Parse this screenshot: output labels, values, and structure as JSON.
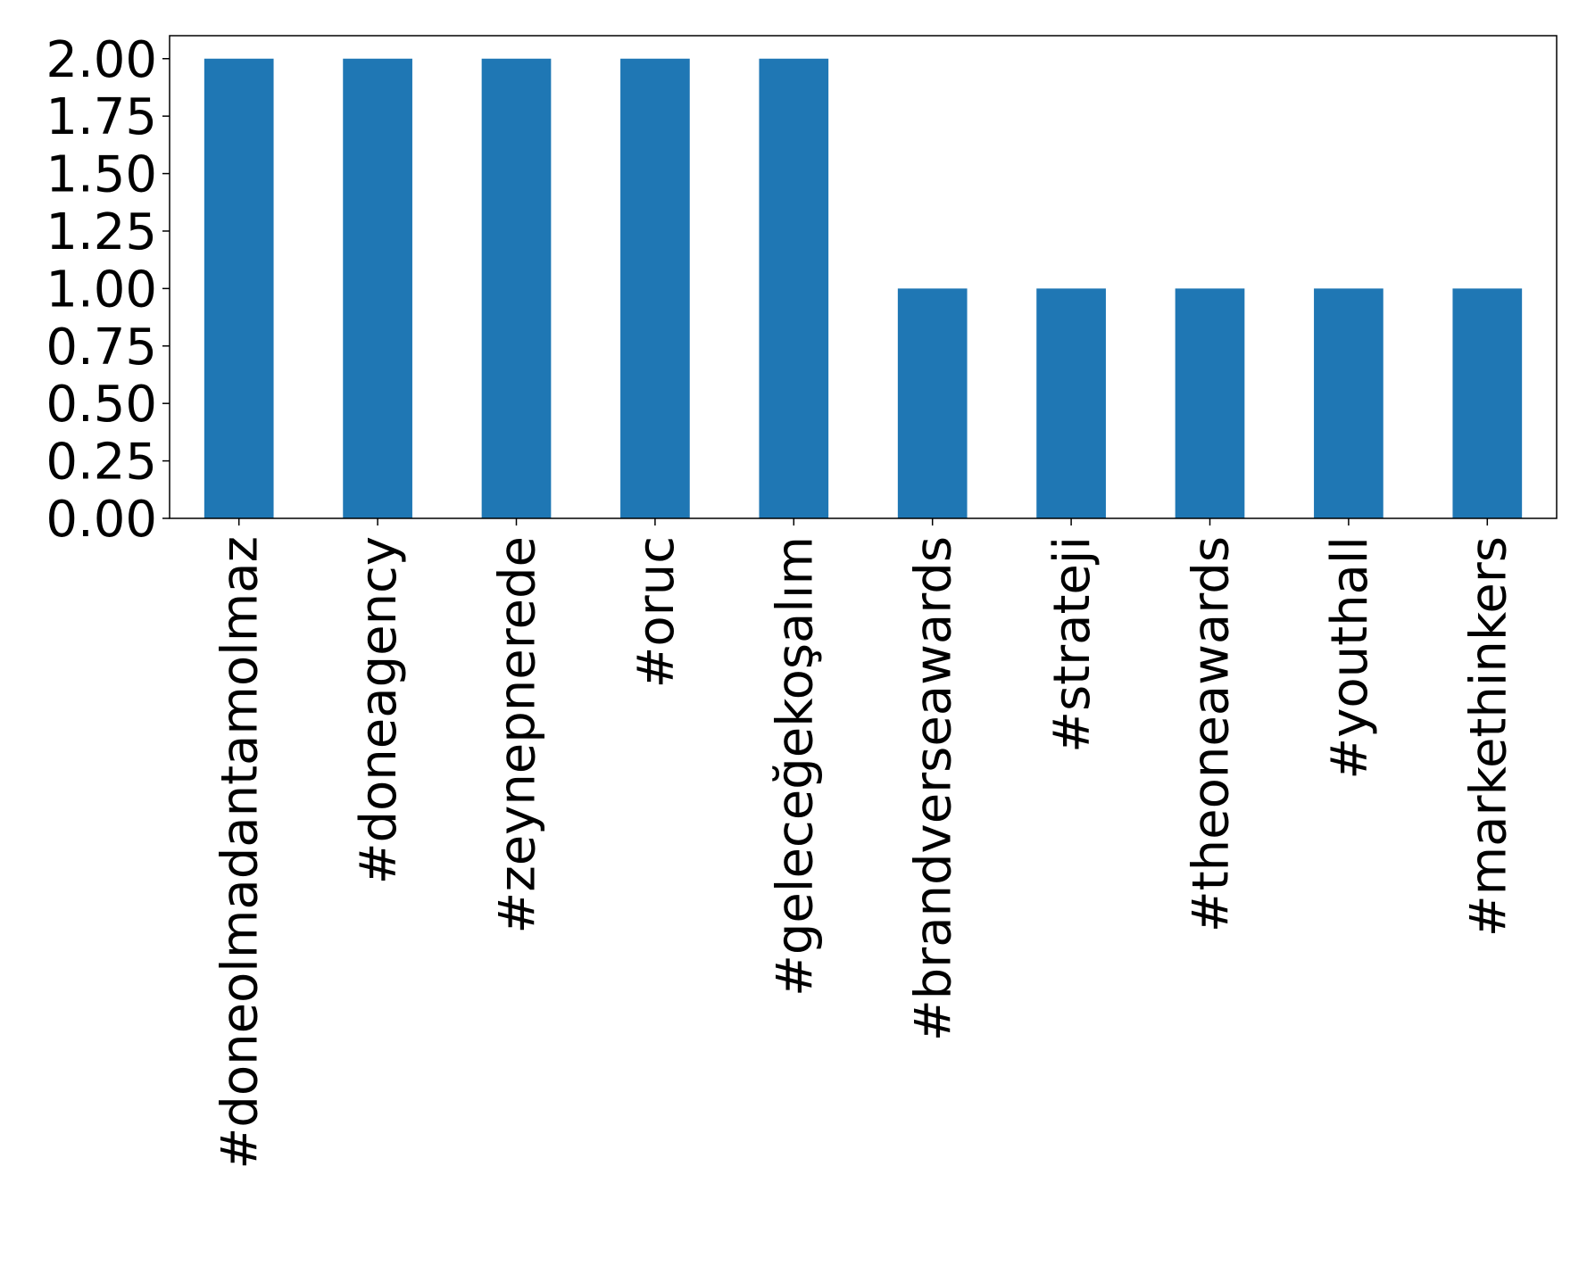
{
  "chart_data": {
    "type": "bar",
    "categories": [
      "#doneolmadantamolmaz",
      "#doneagency",
      "#zeynepnerede",
      "#oruc",
      "#geleceğekoşalım",
      "#brandverseawards",
      "#strateji",
      "#theoneawards",
      "#youthall",
      "#markethinkers"
    ],
    "values": [
      2,
      2,
      2,
      2,
      2,
      1,
      1,
      1,
      1,
      1
    ],
    "title": "",
    "xlabel": "",
    "ylabel": "",
    "ylim": [
      0,
      2.1
    ],
    "yticks": [
      "0.00",
      "0.25",
      "0.50",
      "0.75",
      "1.00",
      "1.25",
      "1.50",
      "1.75",
      "2.00"
    ],
    "bar_color": "#1f77b4",
    "grid": false,
    "legend": "none"
  }
}
